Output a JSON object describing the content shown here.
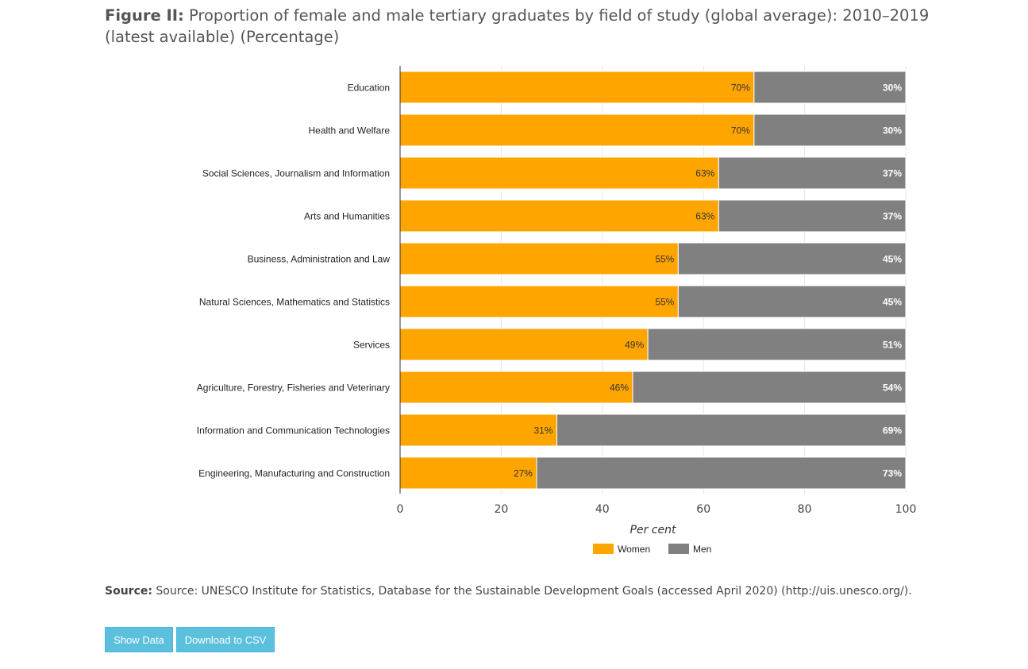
{
  "header": {
    "figure_label": "Figure II:",
    "title": "Proportion of female and male tertiary graduates by field of study (global average): 2010–2019 (latest available) (Percentage)"
  },
  "chart_data": {
    "type": "bar",
    "orientation": "horizontal",
    "stacked": true,
    "categories": [
      "Education",
      "Health and Welfare",
      "Social Sciences, Journalism and Information",
      "Arts and Humanities",
      "Business, Administration and Law",
      "Natural Sciences, Mathematics and Statistics",
      "Services",
      "Agriculture, Forestry, Fisheries and Veterinary",
      "Information and Communication Technologies",
      "Engineering, Manufacturing and Construction"
    ],
    "series": [
      {
        "name": "Women",
        "color": "#ffa500",
        "values": [
          70,
          70,
          63,
          63,
          55,
          55,
          49,
          46,
          31,
          27
        ]
      },
      {
        "name": "Men",
        "color": "#808080",
        "values": [
          30,
          30,
          37,
          37,
          45,
          45,
          51,
          54,
          69,
          73
        ]
      }
    ],
    "value_suffix": "%",
    "xlabel": "Per cent",
    "xlim": [
      0,
      100
    ],
    "xticks": [
      0,
      20,
      40,
      60,
      80,
      100
    ],
    "grid": true,
    "legend": "bottom-center"
  },
  "source": {
    "label": "Source:",
    "text": "Source: UNESCO Institute for Statistics, Database for the Sustainable Development Goals (accessed April 2020) (http://uis.unesco.org/)."
  },
  "buttons": {
    "show_data": "Show Data",
    "download_csv": "Download to CSV"
  }
}
